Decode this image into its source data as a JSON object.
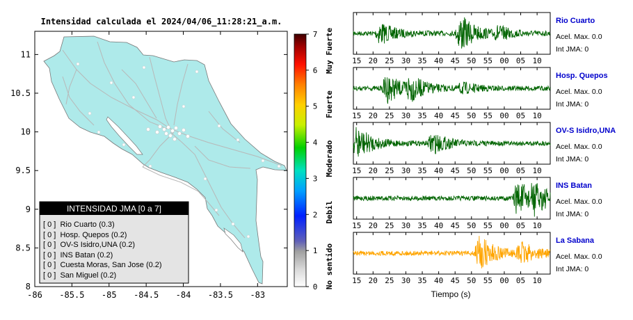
{
  "map": {
    "title": "Intensidad calculada el 2024/04/06_11:28:21_a.m.",
    "x_ticks": [
      "-86",
      "-85.5",
      "-85",
      "-84.5",
      "-84",
      "-83.5",
      "-83"
    ],
    "x_tick_values": [
      -86,
      -85.5,
      -85,
      -84.5,
      -84,
      -83.5,
      -83
    ],
    "y_ticks": [
      "8",
      "8.5",
      "9",
      "9.5",
      "10",
      "10.5",
      "11"
    ],
    "y_tick_values": [
      8,
      8.5,
      9,
      9.5,
      10,
      10.5,
      11
    ],
    "xlim": [
      -86,
      -82.6
    ],
    "ylim": [
      8,
      11.3
    ],
    "colors": {
      "land": "#aeeaea",
      "ocean": "#ffffff",
      "roads": "#b8b8b8",
      "coast": "#777777"
    }
  },
  "colorbar": {
    "ticks": [
      "0",
      "1",
      "2",
      "3",
      "4",
      "5",
      "6",
      "7"
    ],
    "range": [
      0,
      7
    ],
    "category_labels": [
      "No sentido",
      "Debil",
      "Moderado",
      "Fuerte",
      "Muy Fuerte"
    ]
  },
  "legend": {
    "title": "INTENSIDAD JMA [0 a 7]",
    "items": [
      "[ 0 ]  Rio Cuarto (0.3)",
      "[ 0 ]  Hosp. Quepos (0.2)",
      "[ 0 ]  OV-S Isidro,UNA (0.2)",
      "[ 0 ]  INS Batan (0.2)",
      "[ 0 ]  Cuesta Moras, San Jose (0.2)",
      "[ 0 ]  San Miguel (0.2)"
    ]
  },
  "chart_data": [
    {
      "type": "line",
      "title": "Intensidad calculada el 2024/04/06_11:28:21_a.m.",
      "note": "station map with JMA intensity colour scale",
      "xlim": [
        -86,
        -82.6
      ],
      "ylim": [
        8,
        11.3
      ]
    },
    {
      "type": "line",
      "xlabel": "Tiempo (s)",
      "x_tick_labels": [
        "15",
        "20",
        "25",
        "30",
        "35",
        "40",
        "45",
        "50",
        "55",
        "00",
        "05",
        "10"
      ],
      "traces": [
        {
          "station": "Rio Cuarto",
          "acel_label": "Acel. Max. 0.0",
          "int_label": "Int JMA: 0",
          "color": "#006400",
          "bursts": [
            [
              22,
              0.55
            ],
            [
              46.5,
              0.95
            ],
            [
              58,
              0.3
            ]
          ]
        },
        {
          "station": "Hosp. Quepos",
          "acel_label": "Acel. Max. 0.0",
          "int_label": "Int JMA: 0",
          "color": "#006400",
          "bursts": [
            [
              24,
              0.75
            ],
            [
              31,
              0.6
            ],
            [
              47,
              0.25
            ]
          ]
        },
        {
          "station": "OV-S Isidro,UNA",
          "acel_label": "Acel. Max. 0.0",
          "int_label": "Int JMA: 0",
          "color": "#006400",
          "bursts": [
            [
              15,
              0.85
            ],
            [
              38,
              0.55
            ]
          ]
        },
        {
          "station": "INS Batan",
          "acel_label": "Acel. Max. 0.0",
          "int_label": "Int JMA: 0",
          "color": "#006400",
          "bursts": [
            [
              64,
              0.95
            ],
            [
              69,
              0.6
            ]
          ]
        },
        {
          "station": "La Sabana",
          "acel_label": "Acel. Max. 0.0",
          "int_label": "Int JMA: 0",
          "color": "#ffa500",
          "bursts": [
            [
              52,
              0.95
            ],
            [
              65,
              0.55
            ]
          ]
        }
      ]
    }
  ]
}
